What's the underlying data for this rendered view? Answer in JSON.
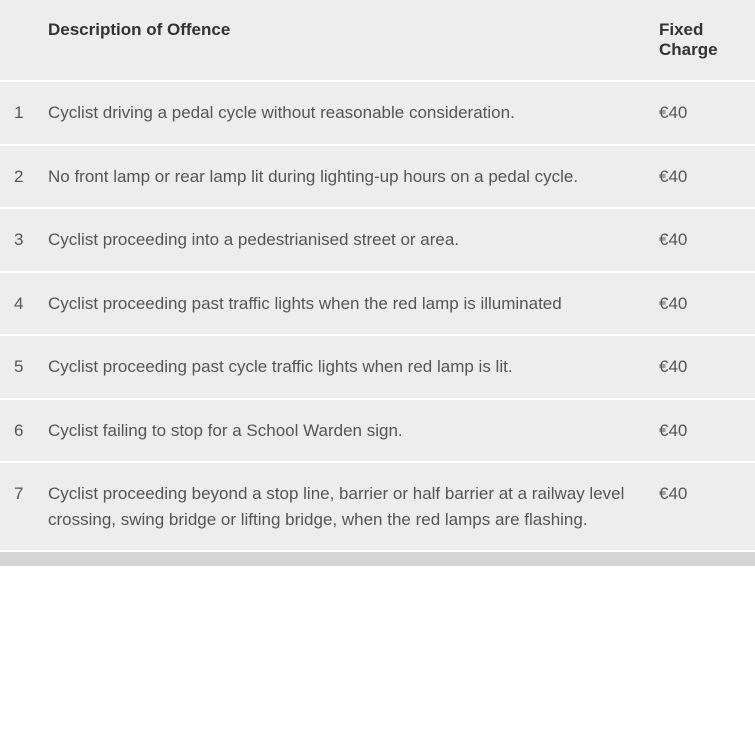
{
  "table": {
    "type": "table",
    "columns": [
      "",
      "Description of Offence",
      "Fixed Charge"
    ],
    "rows": [
      [
        "1",
        "Cyclist driving a pedal cycle without reasonable consideration.",
        "€40"
      ],
      [
        "2",
        "No front lamp or rear lamp lit during lighting-up hours on a pedal cycle.",
        "€40"
      ],
      [
        "3",
        "Cyclist proceeding into a pedestrianised street or area.",
        "€40"
      ],
      [
        "4",
        "Cyclist proceeding past traffic lights when the red lamp is illuminated",
        "€40"
      ],
      [
        "5",
        "Cyclist proceeding past cycle traffic lights when red lamp is lit.",
        "€40"
      ],
      [
        "6",
        "Cyclist failing to stop for a School Warden sign.",
        "€40"
      ],
      [
        "7",
        "Cyclist proceeding beyond a stop line, barrier or half barrier at a railway level crossing, swing bridge or lifting bridge, when the red lamps are flashing.",
        "€40"
      ]
    ],
    "background_color": "#ededed",
    "row_separator_color": "#ffffff",
    "header_text_color": "#333333",
    "cell_text_color": "#555555",
    "footer_bar_color": "#d4d4d4",
    "header_fontsize": 17,
    "cell_fontsize": 17,
    "header_fontweight": "bold"
  }
}
